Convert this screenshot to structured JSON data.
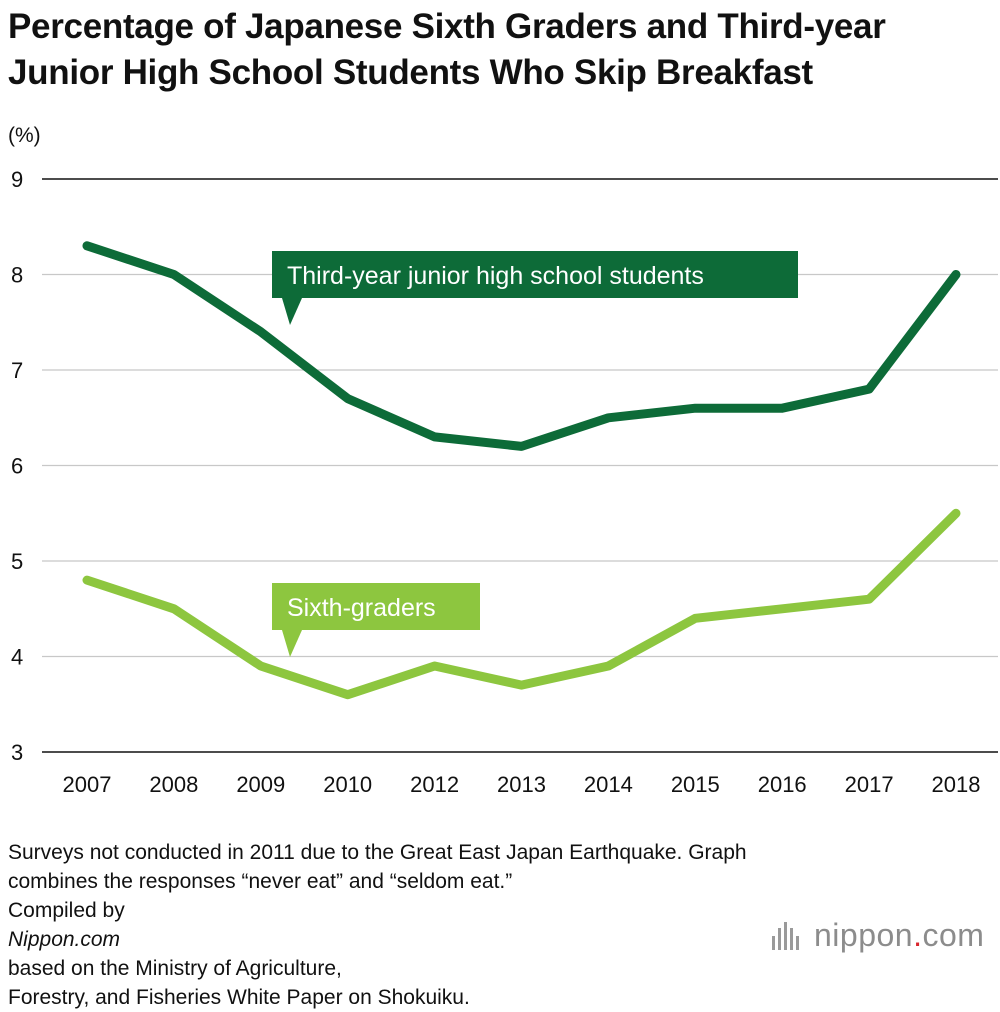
{
  "title_lines": [
    "Percentage of Japanese Sixth Graders and Third-year",
    "Junior High School Students Who Skip Breakfast"
  ],
  "chart_data": {
    "type": "line",
    "title": "Percentage of Japanese Sixth Graders and Third-year Junior High School Students Who Skip Breakfast",
    "xlabel": "",
    "ylabel": "(%)",
    "categories": [
      "2007",
      "2008",
      "2009",
      "2010",
      "2012",
      "2013",
      "2014",
      "2015",
      "2016",
      "2017",
      "2018"
    ],
    "yticks": [
      "3",
      "4",
      "5",
      "6",
      "7",
      "8",
      "9"
    ],
    "ylim": [
      3,
      9
    ],
    "grid": true,
    "series": [
      {
        "name": "Third-year junior high school students",
        "color": "#0d6b38",
        "values": [
          8.3,
          8.0,
          7.4,
          6.7,
          6.3,
          6.2,
          6.5,
          6.6,
          6.6,
          6.8,
          8.0
        ]
      },
      {
        "name": "Sixth-graders",
        "color": "#8dc63f",
        "values": [
          4.8,
          4.5,
          3.9,
          3.6,
          3.9,
          3.7,
          3.9,
          4.4,
          4.5,
          4.6,
          5.5
        ]
      }
    ]
  },
  "footnote_lines": [
    "Surveys not conducted in 2011 due to the Great East Japan Earthquake. Graph",
    "combines the responses “never eat” and “seldom eat.”",
    "Compiled by |Nippon.com| based on the Ministry of Agriculture,",
    "Forestry, and Fisheries White Paper on Shokuiku."
  ],
  "logo": {
    "name": "nippon",
    "dot": ".",
    "suffix": "com"
  }
}
